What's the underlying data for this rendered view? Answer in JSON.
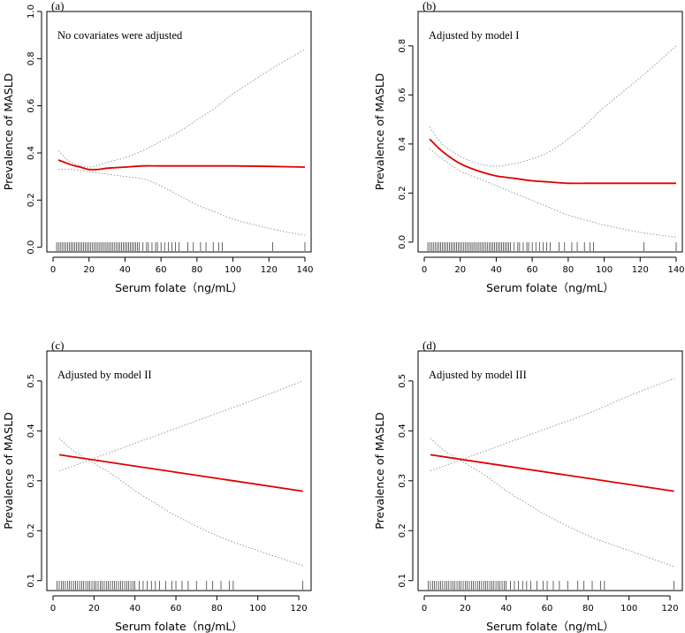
{
  "chart_data": [
    {
      "type": "line",
      "panel": "(a)",
      "annotation": "No covariates were adjusted",
      "xlabel": "Serum folate（ng/mL）",
      "ylabel": "Prevalence of MASLD",
      "xlim": [
        0,
        140
      ],
      "ylim": [
        -0.02,
        1.0
      ],
      "xticks": [
        0,
        20,
        40,
        60,
        80,
        100,
        120,
        140
      ],
      "xtick_labels": [
        "0",
        "20",
        "40",
        "60",
        "80",
        "100",
        "120",
        "140"
      ],
      "yticks": [
        0.0,
        0.2,
        0.4,
        0.6,
        0.8,
        1.0
      ],
      "ytick_labels": [
        "0.0",
        "0.2",
        "0.4",
        "0.6",
        "0.8",
        "1.0"
      ],
      "series": [
        {
          "name": "Estimate",
          "x": [
            3,
            10,
            15,
            20,
            25,
            30,
            40,
            50,
            60,
            80,
            100,
            120,
            140
          ],
          "values": [
            0.37,
            0.35,
            0.34,
            0.33,
            0.33,
            0.335,
            0.34,
            0.345,
            0.345,
            0.345,
            0.345,
            0.343,
            0.34
          ]
        },
        {
          "name": "Upper 95% CI",
          "x": [
            3,
            10,
            20,
            30,
            40,
            50,
            60,
            70,
            80,
            90,
            100,
            120,
            140
          ],
          "values": [
            0.41,
            0.36,
            0.34,
            0.36,
            0.38,
            0.41,
            0.45,
            0.49,
            0.54,
            0.59,
            0.65,
            0.75,
            0.84
          ]
        },
        {
          "name": "Lower 95% CI",
          "x": [
            3,
            10,
            20,
            30,
            40,
            50,
            60,
            70,
            80,
            90,
            100,
            120,
            140
          ],
          "values": [
            0.33,
            0.33,
            0.32,
            0.31,
            0.3,
            0.29,
            0.26,
            0.22,
            0.18,
            0.15,
            0.12,
            0.08,
            0.05
          ]
        }
      ],
      "rug_x": [
        2,
        3,
        4,
        5,
        6,
        7,
        8,
        9,
        10,
        11,
        12,
        13,
        14,
        15,
        16,
        17,
        18,
        19,
        20,
        21,
        22,
        23,
        24,
        25,
        26,
        27,
        28,
        29,
        30,
        31,
        32,
        33,
        34,
        35,
        36,
        37,
        38,
        39,
        40,
        41,
        42,
        43,
        44,
        45,
        46,
        47,
        48,
        50,
        52,
        53,
        55,
        57,
        58,
        60,
        62,
        64,
        66,
        68,
        70,
        75,
        78,
        82,
        85,
        89,
        92,
        94,
        122,
        140
      ]
    },
    {
      "type": "line",
      "panel": "(b)",
      "annotation": "Adjusted by model I",
      "xlabel": "Serum folate（ng/mL）",
      "ylabel": "Prevalence of MASLD",
      "xlim": [
        0,
        140
      ],
      "ylim": [
        -0.04,
        0.94
      ],
      "xticks": [
        0,
        20,
        40,
        60,
        80,
        100,
        120,
        140
      ],
      "xtick_labels": [
        "0",
        "20",
        "40",
        "60",
        "80",
        "100",
        "120",
        "140"
      ],
      "yticks": [
        0.0,
        0.2,
        0.4,
        0.6,
        0.8
      ],
      "ytick_labels": [
        "0.0",
        "0.2",
        "0.4",
        "0.6",
        "0.8"
      ],
      "series": [
        {
          "name": "Estimate",
          "x": [
            3,
            10,
            20,
            30,
            40,
            50,
            60,
            70,
            80,
            90,
            100,
            120,
            140
          ],
          "values": [
            0.42,
            0.37,
            0.32,
            0.29,
            0.27,
            0.26,
            0.25,
            0.245,
            0.24,
            0.24,
            0.24,
            0.24,
            0.24
          ]
        },
        {
          "name": "Upper 95% CI",
          "x": [
            3,
            10,
            20,
            30,
            40,
            50,
            60,
            70,
            80,
            90,
            100,
            120,
            140
          ],
          "values": [
            0.47,
            0.4,
            0.35,
            0.32,
            0.31,
            0.32,
            0.34,
            0.37,
            0.42,
            0.48,
            0.55,
            0.67,
            0.8
          ]
        },
        {
          "name": "Lower 95% CI",
          "x": [
            3,
            10,
            20,
            30,
            40,
            50,
            60,
            70,
            80,
            90,
            100,
            120,
            140
          ],
          "values": [
            0.38,
            0.34,
            0.29,
            0.26,
            0.23,
            0.2,
            0.17,
            0.14,
            0.11,
            0.09,
            0.07,
            0.04,
            0.02
          ]
        }
      ],
      "rug_x": [
        2,
        3,
        4,
        5,
        6,
        7,
        8,
        9,
        10,
        11,
        12,
        13,
        14,
        15,
        16,
        17,
        18,
        19,
        20,
        21,
        22,
        23,
        24,
        25,
        26,
        27,
        28,
        29,
        30,
        31,
        32,
        33,
        34,
        35,
        36,
        37,
        38,
        39,
        40,
        41,
        42,
        43,
        44,
        45,
        46,
        47,
        48,
        50,
        52,
        53,
        55,
        57,
        58,
        60,
        62,
        64,
        66,
        68,
        70,
        75,
        78,
        82,
        85,
        89,
        92,
        94,
        122,
        140
      ]
    },
    {
      "type": "line",
      "panel": "(c)",
      "annotation": "Adjusted by model II",
      "xlabel": "Serum folate（ng/mL）",
      "ylabel": "Prevalence of MASLD",
      "xlim": [
        0,
        123
      ],
      "ylim": [
        0.08,
        0.56
      ],
      "xticks": [
        0,
        20,
        40,
        60,
        80,
        100,
        120
      ],
      "xtick_labels": [
        "0",
        "20",
        "40",
        "60",
        "80",
        "100",
        "120"
      ],
      "yticks": [
        0.1,
        0.2,
        0.3,
        0.4,
        0.5
      ],
      "ytick_labels": [
        "0.1",
        "0.2",
        "0.3",
        "0.4",
        "0.5"
      ],
      "series": [
        {
          "name": "Estimate",
          "x": [
            3,
            122
          ],
          "values": [
            0.352,
            0.279
          ]
        },
        {
          "name": "Upper 95% CI",
          "x": [
            3,
            10,
            20,
            30,
            40,
            60,
            80,
            100,
            122
          ],
          "values": [
            0.32,
            0.33,
            0.345,
            0.36,
            0.375,
            0.405,
            0.435,
            0.465,
            0.5
          ]
        },
        {
          "name": "Lower 95% CI",
          "x": [
            3,
            10,
            20,
            30,
            40,
            50,
            60,
            80,
            100,
            122
          ],
          "values": [
            0.385,
            0.36,
            0.335,
            0.31,
            0.28,
            0.255,
            0.23,
            0.19,
            0.16,
            0.13
          ]
        }
      ],
      "rug_x": [
        2,
        3,
        4,
        5,
        6,
        7,
        8,
        9,
        10,
        11,
        12,
        13,
        14,
        15,
        16,
        17,
        18,
        19,
        20,
        21,
        22,
        23,
        24,
        25,
        26,
        27,
        28,
        29,
        30,
        31,
        32,
        33,
        34,
        35,
        36,
        37,
        38,
        39,
        40,
        42,
        44,
        46,
        48,
        50,
        52,
        55,
        58,
        60,
        63,
        66,
        70,
        75,
        78,
        82,
        86,
        88,
        122
      ]
    },
    {
      "type": "line",
      "panel": "(d)",
      "annotation": "Adjusted by model III",
      "xlabel": "Serum folate（ng/mL）",
      "ylabel": "Prevalence of MASLD",
      "xlim": [
        0,
        123
      ],
      "ylim": [
        0.08,
        0.56
      ],
      "xticks": [
        0,
        20,
        40,
        60,
        80,
        100,
        120
      ],
      "xtick_labels": [
        "0",
        "20",
        "40",
        "60",
        "80",
        "100",
        "120"
      ],
      "yticks": [
        0.1,
        0.2,
        0.3,
        0.4,
        0.5
      ],
      "ytick_labels": [
        "0.1",
        "0.2",
        "0.3",
        "0.4",
        "0.5"
      ],
      "series": [
        {
          "name": "Estimate",
          "x": [
            3,
            122
          ],
          "values": [
            0.352,
            0.279
          ]
        },
        {
          "name": "Upper 95% CI",
          "x": [
            3,
            10,
            20,
            30,
            40,
            60,
            80,
            100,
            122
          ],
          "values": [
            0.32,
            0.33,
            0.345,
            0.36,
            0.375,
            0.405,
            0.435,
            0.47,
            0.505
          ]
        },
        {
          "name": "Lower 95% CI",
          "x": [
            3,
            10,
            20,
            30,
            40,
            50,
            60,
            80,
            100,
            122
          ],
          "values": [
            0.385,
            0.36,
            0.335,
            0.31,
            0.28,
            0.255,
            0.23,
            0.19,
            0.16,
            0.128
          ]
        }
      ],
      "rug_x": [
        2,
        3,
        4,
        5,
        6,
        7,
        8,
        9,
        10,
        11,
        12,
        13,
        14,
        15,
        16,
        17,
        18,
        19,
        20,
        21,
        22,
        23,
        24,
        25,
        26,
        27,
        28,
        29,
        30,
        31,
        32,
        33,
        34,
        35,
        36,
        37,
        38,
        39,
        40,
        42,
        44,
        46,
        48,
        50,
        52,
        55,
        58,
        60,
        63,
        66,
        70,
        75,
        78,
        82,
        86,
        88,
        122
      ]
    }
  ],
  "colors": {
    "estimate": "#e00000",
    "confidence": "#9a9a9a",
    "axes": "#000000"
  }
}
